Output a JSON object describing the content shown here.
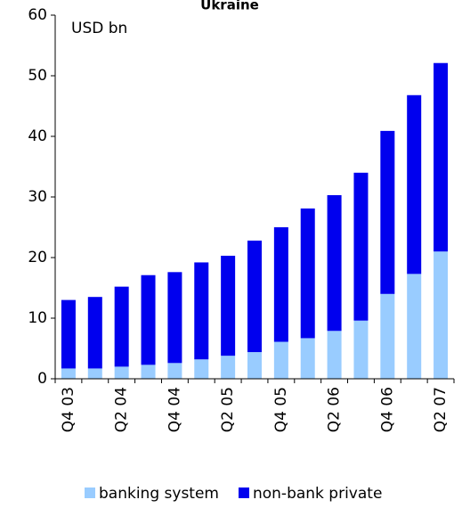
{
  "chart_data": {
    "type": "stacked_bar",
    "title": "Ukraine",
    "unit": "USD bn",
    "categories": [
      "Q4 03",
      null,
      "Q2 04",
      null,
      "Q4 04",
      null,
      "Q2 05",
      null,
      "Q4 05",
      null,
      "Q2 06",
      null,
      "Q4 06",
      null,
      "Q2 07"
    ],
    "series": [
      {
        "name": "banking system",
        "color": "#99ccff",
        "values": [
          1.7,
          1.7,
          2.0,
          2.3,
          2.6,
          3.2,
          3.8,
          4.4,
          6.1,
          6.7,
          7.9,
          9.6,
          14.0,
          17.3,
          21.0
        ]
      },
      {
        "name": "non-bank private",
        "color": "#0000ee",
        "values": [
          11.3,
          11.8,
          13.2,
          14.8,
          15.0,
          16.0,
          16.5,
          18.4,
          18.9,
          21.4,
          22.4,
          24.4,
          26.9,
          29.5,
          31.1
        ]
      }
    ],
    "ylim": [
      0,
      60
    ],
    "yticks": [
      0,
      10,
      20,
      30,
      40,
      50,
      60
    ],
    "legend": "bottom"
  }
}
